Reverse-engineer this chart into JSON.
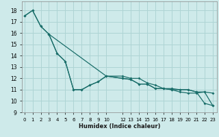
{
  "xlabel": "Humidex (Indice chaleur)",
  "x_ticks": [
    0,
    1,
    2,
    3,
    4,
    5,
    6,
    7,
    8,
    9,
    10,
    12,
    13,
    14,
    15,
    16,
    17,
    18,
    19,
    20,
    21,
    22,
    23
  ],
  "x_tick_labels": [
    "0",
    "1",
    "2",
    "3",
    "4",
    "5",
    "6",
    "7",
    "8",
    "9",
    "10",
    "12",
    "13",
    "14",
    "15",
    "16",
    "17",
    "18",
    "19",
    "20",
    "21",
    "22",
    "23"
  ],
  "xlim": [
    -0.3,
    23.5
  ],
  "ylim": [
    9.0,
    18.8
  ],
  "y_ticks": [
    9,
    10,
    11,
    12,
    13,
    14,
    15,
    16,
    17,
    18
  ],
  "background_color": "#ceeaea",
  "grid_color": "#aed4d4",
  "line_color": "#1a6e6a",
  "series1_x": [
    0,
    1,
    2,
    3,
    10,
    12,
    13,
    14,
    15,
    16,
    17,
    18,
    19,
    20,
    21,
    22,
    23
  ],
  "series1_y": [
    17.5,
    18.0,
    16.6,
    15.9,
    12.2,
    12.2,
    12.0,
    12.0,
    11.6,
    11.4,
    11.1,
    11.1,
    11.0,
    11.0,
    10.8,
    9.8,
    9.6
  ],
  "series2_x": [
    0,
    1,
    2,
    3,
    4,
    5,
    6,
    7,
    8,
    9,
    10,
    12,
    13,
    14,
    15,
    16,
    17,
    18,
    19,
    20,
    21,
    22,
    23
  ],
  "series2_y": [
    17.5,
    18.0,
    16.6,
    15.9,
    14.2,
    13.5,
    11.0,
    11.0,
    11.4,
    11.7,
    12.2,
    12.0,
    11.9,
    11.5,
    11.5,
    11.1,
    11.1,
    11.0,
    11.0,
    11.0,
    10.8,
    10.8,
    10.7
  ],
  "series3_x": [
    3,
    4,
    5,
    6,
    7,
    8,
    9,
    10,
    12,
    13,
    14,
    15,
    16,
    17,
    18,
    19,
    20,
    21,
    22,
    23
  ],
  "series3_y": [
    15.9,
    14.2,
    13.5,
    11.0,
    11.0,
    11.4,
    11.7,
    12.2,
    12.0,
    11.9,
    11.5,
    11.5,
    11.1,
    11.1,
    11.0,
    10.8,
    10.7,
    10.7,
    10.8,
    9.6
  ]
}
